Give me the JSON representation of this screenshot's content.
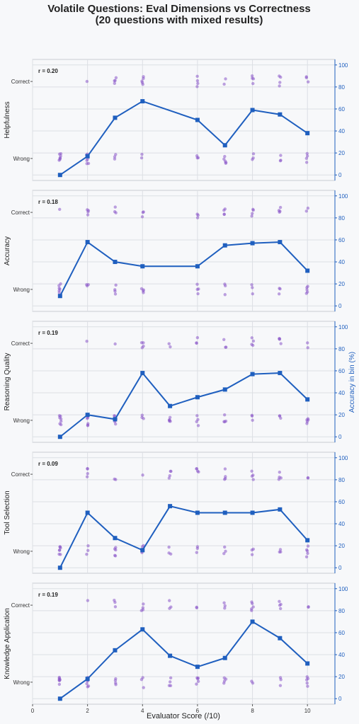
{
  "chart_data": {
    "type": "line",
    "title_line1": "Volatile Questions: Eval Dimensions vs Correctness",
    "title_line2": "(20 questions with mixed results)",
    "xlabel": "Evaluator Score (/10)",
    "right_ylabel": "Accuracy in bin (%)",
    "x_ticks": [
      0,
      2,
      4,
      6,
      8,
      10
    ],
    "xlim": [
      0,
      11
    ],
    "right_ylim": [
      -5,
      105
    ],
    "right_ticks": [
      0,
      20,
      40,
      60,
      80,
      100
    ],
    "left_tick_labels": [
      "Wrong",
      "Correct"
    ],
    "colors": {
      "line": "#1f5fbf",
      "points": "#8a55c8"
    },
    "panels": [
      {
        "ylabel": "Helpfulness",
        "r_label": "r = 0.20",
        "x": [
          1,
          2,
          3,
          4,
          6,
          7,
          8,
          9,
          10
        ],
        "accuracy": [
          0,
          17,
          52,
          67,
          50,
          27,
          59,
          55,
          38
        ]
      },
      {
        "ylabel": "Accuracy",
        "r_label": "r = 0.18",
        "x": [
          1,
          2,
          3,
          4,
          6,
          7,
          8,
          9,
          10
        ],
        "accuracy": [
          9,
          58,
          40,
          36,
          36,
          55,
          57,
          58,
          32
        ]
      },
      {
        "ylabel": "Reasoning Quality",
        "r_label": "r = 0.19",
        "x": [
          1,
          2,
          3,
          4,
          5,
          6,
          7,
          8,
          9,
          10
        ],
        "accuracy": [
          0,
          20,
          16,
          58,
          28,
          36,
          43,
          57,
          58,
          34
        ]
      },
      {
        "ylabel": "Tool Selection",
        "r_label": "r = 0.09",
        "x": [
          1,
          2,
          3,
          4,
          5,
          6,
          7,
          8,
          9,
          10
        ],
        "accuracy": [
          0,
          50,
          27,
          16,
          56,
          50,
          50,
          50,
          53,
          25
        ]
      },
      {
        "ylabel": "Knowledge Application",
        "r_label": "r = 0.19",
        "x": [
          1,
          2,
          3,
          4,
          5,
          6,
          7,
          8,
          9,
          10
        ],
        "accuracy": [
          0,
          18,
          44,
          63,
          39,
          29,
          37,
          70,
          55,
          32
        ]
      }
    ]
  }
}
